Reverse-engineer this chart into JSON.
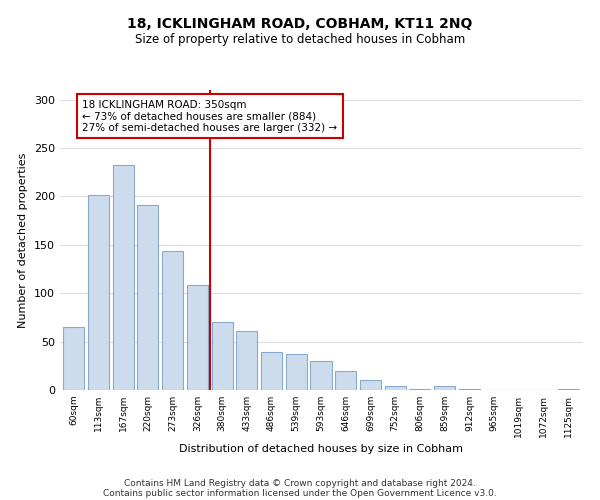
{
  "title": "18, ICKLINGHAM ROAD, COBHAM, KT11 2NQ",
  "subtitle": "Size of property relative to detached houses in Cobham",
  "xlabel": "Distribution of detached houses by size in Cobham",
  "ylabel": "Number of detached properties",
  "bar_labels": [
    "60sqm",
    "113sqm",
    "167sqm",
    "220sqm",
    "273sqm",
    "326sqm",
    "380sqm",
    "433sqm",
    "486sqm",
    "539sqm",
    "593sqm",
    "646sqm",
    "699sqm",
    "752sqm",
    "806sqm",
    "859sqm",
    "912sqm",
    "965sqm",
    "1019sqm",
    "1072sqm",
    "1125sqm"
  ],
  "bar_values": [
    65,
    202,
    233,
    191,
    144,
    108,
    70,
    61,
    39,
    37,
    30,
    20,
    10,
    4,
    1,
    4,
    1,
    0,
    0,
    0,
    1
  ],
  "bar_color": "#ccdcec",
  "bar_edge_color": "#88aacc",
  "vline_x": 5.5,
  "vline_color": "#cc0000",
  "annotation_text": "18 ICKLINGHAM ROAD: 350sqm\n← 73% of detached houses are smaller (884)\n27% of semi-detached houses are larger (332) →",
  "annotation_box_color": "#ffffff",
  "annotation_box_edge": "#cc0000",
  "ylim": [
    0,
    310
  ],
  "yticks": [
    0,
    50,
    100,
    150,
    200,
    250,
    300
  ],
  "footer1": "Contains HM Land Registry data © Crown copyright and database right 2024.",
  "footer2": "Contains public sector information licensed under the Open Government Licence v3.0.",
  "background_color": "#ffffff",
  "grid_color": "#dddddd"
}
